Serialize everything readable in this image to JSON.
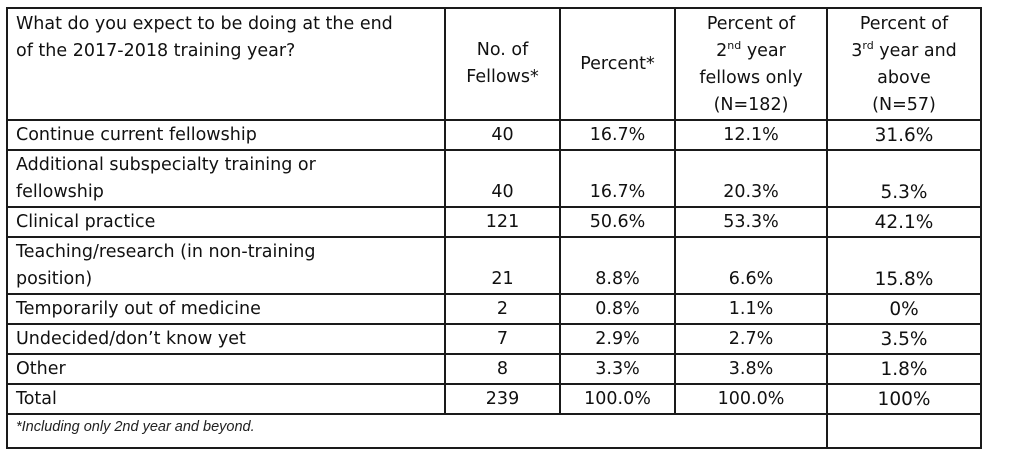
{
  "table": {
    "header": {
      "question": "What do you expect to be doing at the end\nof the 2017-2018 training year?",
      "count": "No. of\nFellows*",
      "percent": "Percent*",
      "second_year_pre": "Percent of\n2",
      "second_year_sup": "nd",
      "second_year_post": " year\nfellows only\n(N=182)",
      "third_year_pre": "Percent of\n3",
      "third_year_sup": "rd",
      "third_year_post": " year and\nabove\n(N=57)"
    },
    "rows": [
      {
        "label": "Continue current fellowship",
        "count": "40",
        "percent": "16.7%",
        "second": "12.1%",
        "third": "31.6%"
      },
      {
        "label": "Additional subspecialty training or\nfellowship",
        "count": "40",
        "percent": "16.7%",
        "second": "20.3%",
        "third": "5.3%"
      },
      {
        "label": "Clinical practice",
        "count": "121",
        "percent": "50.6%",
        "second": "53.3%",
        "third": "42.1%"
      },
      {
        "label": "Teaching/research (in non-training\nposition)",
        "count": "21",
        "percent": "8.8%",
        "second": "6.6%",
        "third": "15.8%"
      },
      {
        "label": "Temporarily out of medicine",
        "count": "2",
        "percent": "0.8%",
        "second": "1.1%",
        "third": "0%"
      },
      {
        "label": "Undecided/don’t know yet",
        "count": "7",
        "percent": "2.9%",
        "second": "2.7%",
        "third": "3.5%"
      },
      {
        "label": "Other",
        "count": "8",
        "percent": "3.3%",
        "second": "3.8%",
        "third": "1.8%"
      },
      {
        "label": "Total",
        "count": "239",
        "percent": "100.0%",
        "second": "100.0%",
        "third": "100%"
      }
    ],
    "footnote": "*Including only 2nd year and beyond."
  }
}
